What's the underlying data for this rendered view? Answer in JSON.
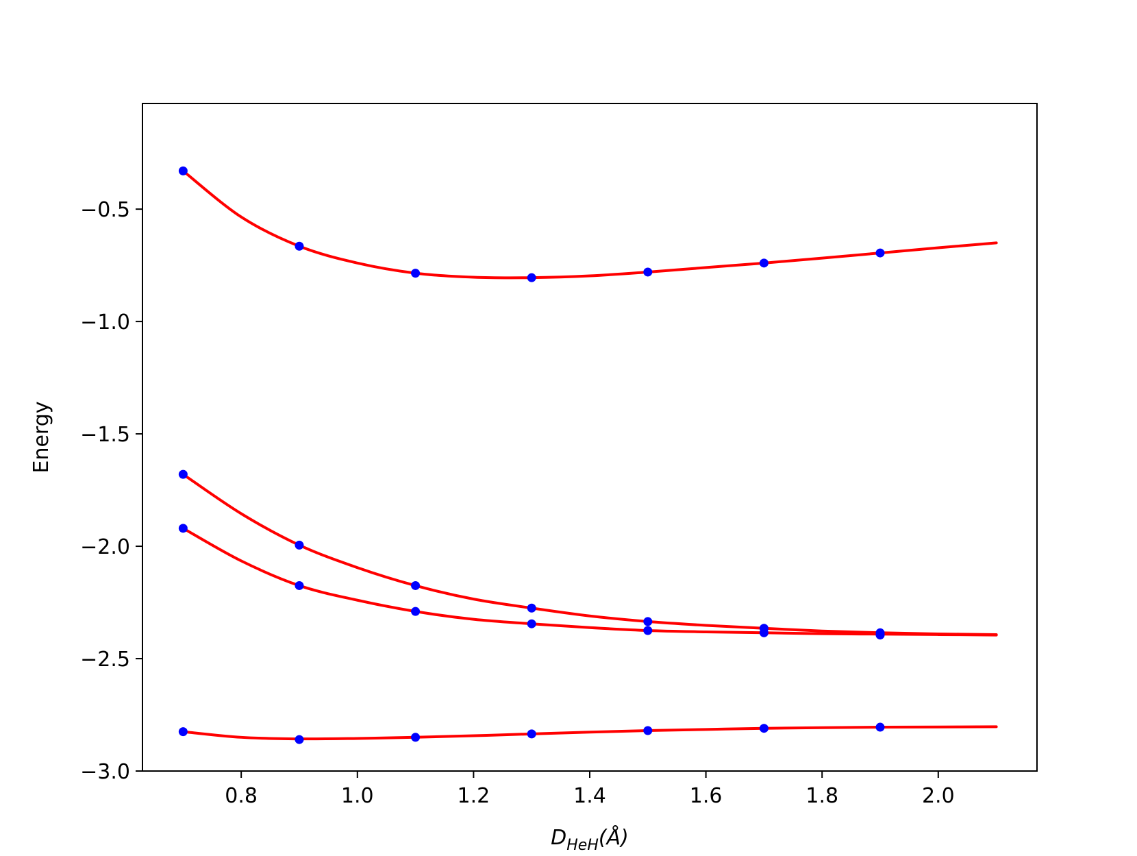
{
  "chart_data": {
    "type": "scatter",
    "title": "",
    "xlabel": {
      "main": "D",
      "subscript": "HeH",
      "suffix": "(Å)"
    },
    "ylabel": "Energy",
    "xlim": [
      0.63,
      2.17
    ],
    "ylim": [
      -3.0,
      -0.03
    ],
    "x_ticks": [
      0.8,
      1.0,
      1.2,
      1.4,
      1.6,
      1.8,
      2.0
    ],
    "x_tick_labels": [
      "0.8",
      "1.0",
      "1.2",
      "1.4",
      "1.6",
      "1.8",
      "2.0"
    ],
    "y_ticks": [
      -3.0,
      -2.5,
      -2.0,
      -1.5,
      -1.0,
      -0.5
    ],
    "y_tick_labels": [
      "−3.0",
      "−2.5",
      "−2.0",
      "−1.5",
      "−1.0",
      "−0.5"
    ],
    "grid": false,
    "legend": "none",
    "point_color": "#0000ff",
    "curve_color": "#ff0000",
    "series": [
      {
        "x": [
          0.7,
          0.9,
          1.1,
          1.3,
          1.5,
          1.7,
          1.9
        ],
        "y": [
          -0.33,
          -0.665,
          -0.785,
          -0.805,
          -0.78,
          -0.74,
          -0.695
        ],
        "fit_x": [
          0.7,
          0.8,
          0.9,
          1.0,
          1.1,
          1.2,
          1.3,
          1.4,
          1.5,
          1.6,
          1.7,
          1.8,
          1.9,
          2.0,
          2.1
        ],
        "fit_y": [
          -0.33,
          -0.535,
          -0.665,
          -0.74,
          -0.785,
          -0.803,
          -0.805,
          -0.797,
          -0.78,
          -0.76,
          -0.74,
          -0.718,
          -0.695,
          -0.672,
          -0.65
        ]
      },
      {
        "x": [
          0.7,
          0.9,
          1.1,
          1.3,
          1.5,
          1.7,
          1.9
        ],
        "y": [
          -1.68,
          -1.995,
          -2.175,
          -2.275,
          -2.335,
          -2.365,
          -2.385
        ],
        "fit_x": [
          0.7,
          0.8,
          0.9,
          1.0,
          1.1,
          1.2,
          1.3,
          1.4,
          1.5,
          1.6,
          1.7,
          1.8,
          1.9,
          2.0,
          2.1
        ],
        "fit_y": [
          -1.68,
          -1.855,
          -1.995,
          -2.095,
          -2.175,
          -2.235,
          -2.275,
          -2.31,
          -2.335,
          -2.352,
          -2.365,
          -2.377,
          -2.385,
          -2.39,
          -2.393
        ]
      },
      {
        "x": [
          0.7,
          0.9,
          1.1,
          1.3,
          1.5,
          1.7,
          1.9
        ],
        "y": [
          -1.92,
          -2.175,
          -2.29,
          -2.345,
          -2.375,
          -2.385,
          -2.395
        ],
        "fit_x": [
          0.7,
          0.8,
          0.9,
          1.0,
          1.1,
          1.2,
          1.3,
          1.4,
          1.5,
          1.6,
          1.7,
          1.8,
          1.9,
          2.0,
          2.1
        ],
        "fit_y": [
          -1.92,
          -2.065,
          -2.175,
          -2.24,
          -2.29,
          -2.325,
          -2.345,
          -2.362,
          -2.375,
          -2.381,
          -2.385,
          -2.389,
          -2.391,
          -2.393,
          -2.395
        ]
      },
      {
        "x": [
          0.7,
          0.9,
          1.1,
          1.3,
          1.5,
          1.7,
          1.9
        ],
        "y": [
          -2.825,
          -2.86,
          -2.85,
          -2.835,
          -2.82,
          -2.81,
          -2.805
        ],
        "fit_x": [
          0.7,
          0.8,
          0.9,
          1.0,
          1.1,
          1.2,
          1.3,
          1.4,
          1.5,
          1.6,
          1.7,
          1.8,
          1.9,
          2.0,
          2.1
        ],
        "fit_y": [
          -2.825,
          -2.85,
          -2.857,
          -2.855,
          -2.85,
          -2.843,
          -2.835,
          -2.827,
          -2.82,
          -2.815,
          -2.81,
          -2.807,
          -2.805,
          -2.804,
          -2.803
        ]
      }
    ]
  }
}
